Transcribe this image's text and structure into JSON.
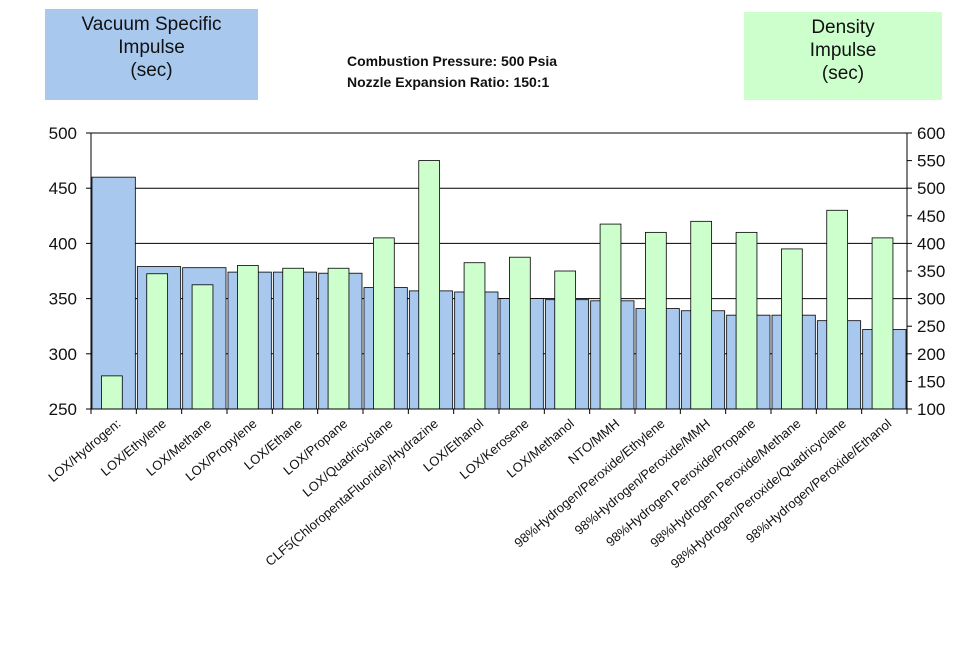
{
  "heading": {
    "line1": "Combustion Pressure: 500 Psia",
    "line2": "Nozzle Expansion Ratio: 150:1"
  },
  "legend": {
    "left": {
      "lines": [
        "Vacuum Specific",
        "Impulse",
        "(sec)"
      ],
      "color": "#a8c8ee"
    },
    "right": {
      "lines": [
        "Density",
        "Impulse",
        "(sec)"
      ],
      "color": "#ccffcc"
    }
  },
  "chart_data": {
    "type": "bar",
    "title": "",
    "xlabel": "",
    "categories": [
      "LOX/Hydrogen:",
      "LOX/Ethylene",
      "LOX/Methane",
      "LOX/Propylene",
      "LOX/Ethane",
      "LOX/Propane",
      "LOX/Quadricyclane",
      "CLF5(ChloropentaFluoride)/Hydrazine",
      "LOX/Ethanol",
      "LOX/Kerosene",
      "LOX/Methanol",
      "NTO/MMH",
      "98%Hydrogen/Peroxide/Ethylene",
      "98%Hydrogen/Peroxide/MMH",
      "98%Hydrogen Peroxide/Propane",
      "98%Hydrogen Peroxide/Methane",
      "98%Hydrogen/Peroxide/Quadricyclane",
      "98%Hydrogen/Peroxide/Ethanol"
    ],
    "series": [
      {
        "name": "Vacuum Specific Impulse (sec)",
        "axis": "left",
        "color": "#a8c8ee",
        "values": [
          460,
          379,
          378,
          374,
          374,
          373,
          360,
          357,
          356,
          350,
          349,
          348,
          341,
          339,
          335,
          335,
          330,
          322
        ]
      },
      {
        "name": "Density Impulse (sec)",
        "axis": "right",
        "color": "#ccffcc",
        "values": [
          160,
          345,
          325,
          360,
          355,
          355,
          410,
          550,
          365,
          375,
          350,
          435,
          420,
          440,
          420,
          390,
          460,
          410
        ]
      }
    ],
    "y_left": {
      "lim": [
        250,
        500
      ],
      "ticks": [
        250,
        300,
        350,
        400,
        450,
        500
      ]
    },
    "y_right": {
      "lim": [
        100,
        600
      ],
      "ticks": [
        100,
        150,
        200,
        250,
        300,
        350,
        400,
        450,
        500,
        550,
        600
      ]
    },
    "grid": "horizontal major lines at left-axis ticks",
    "legend_placement": "top-left and top-right boxes"
  }
}
